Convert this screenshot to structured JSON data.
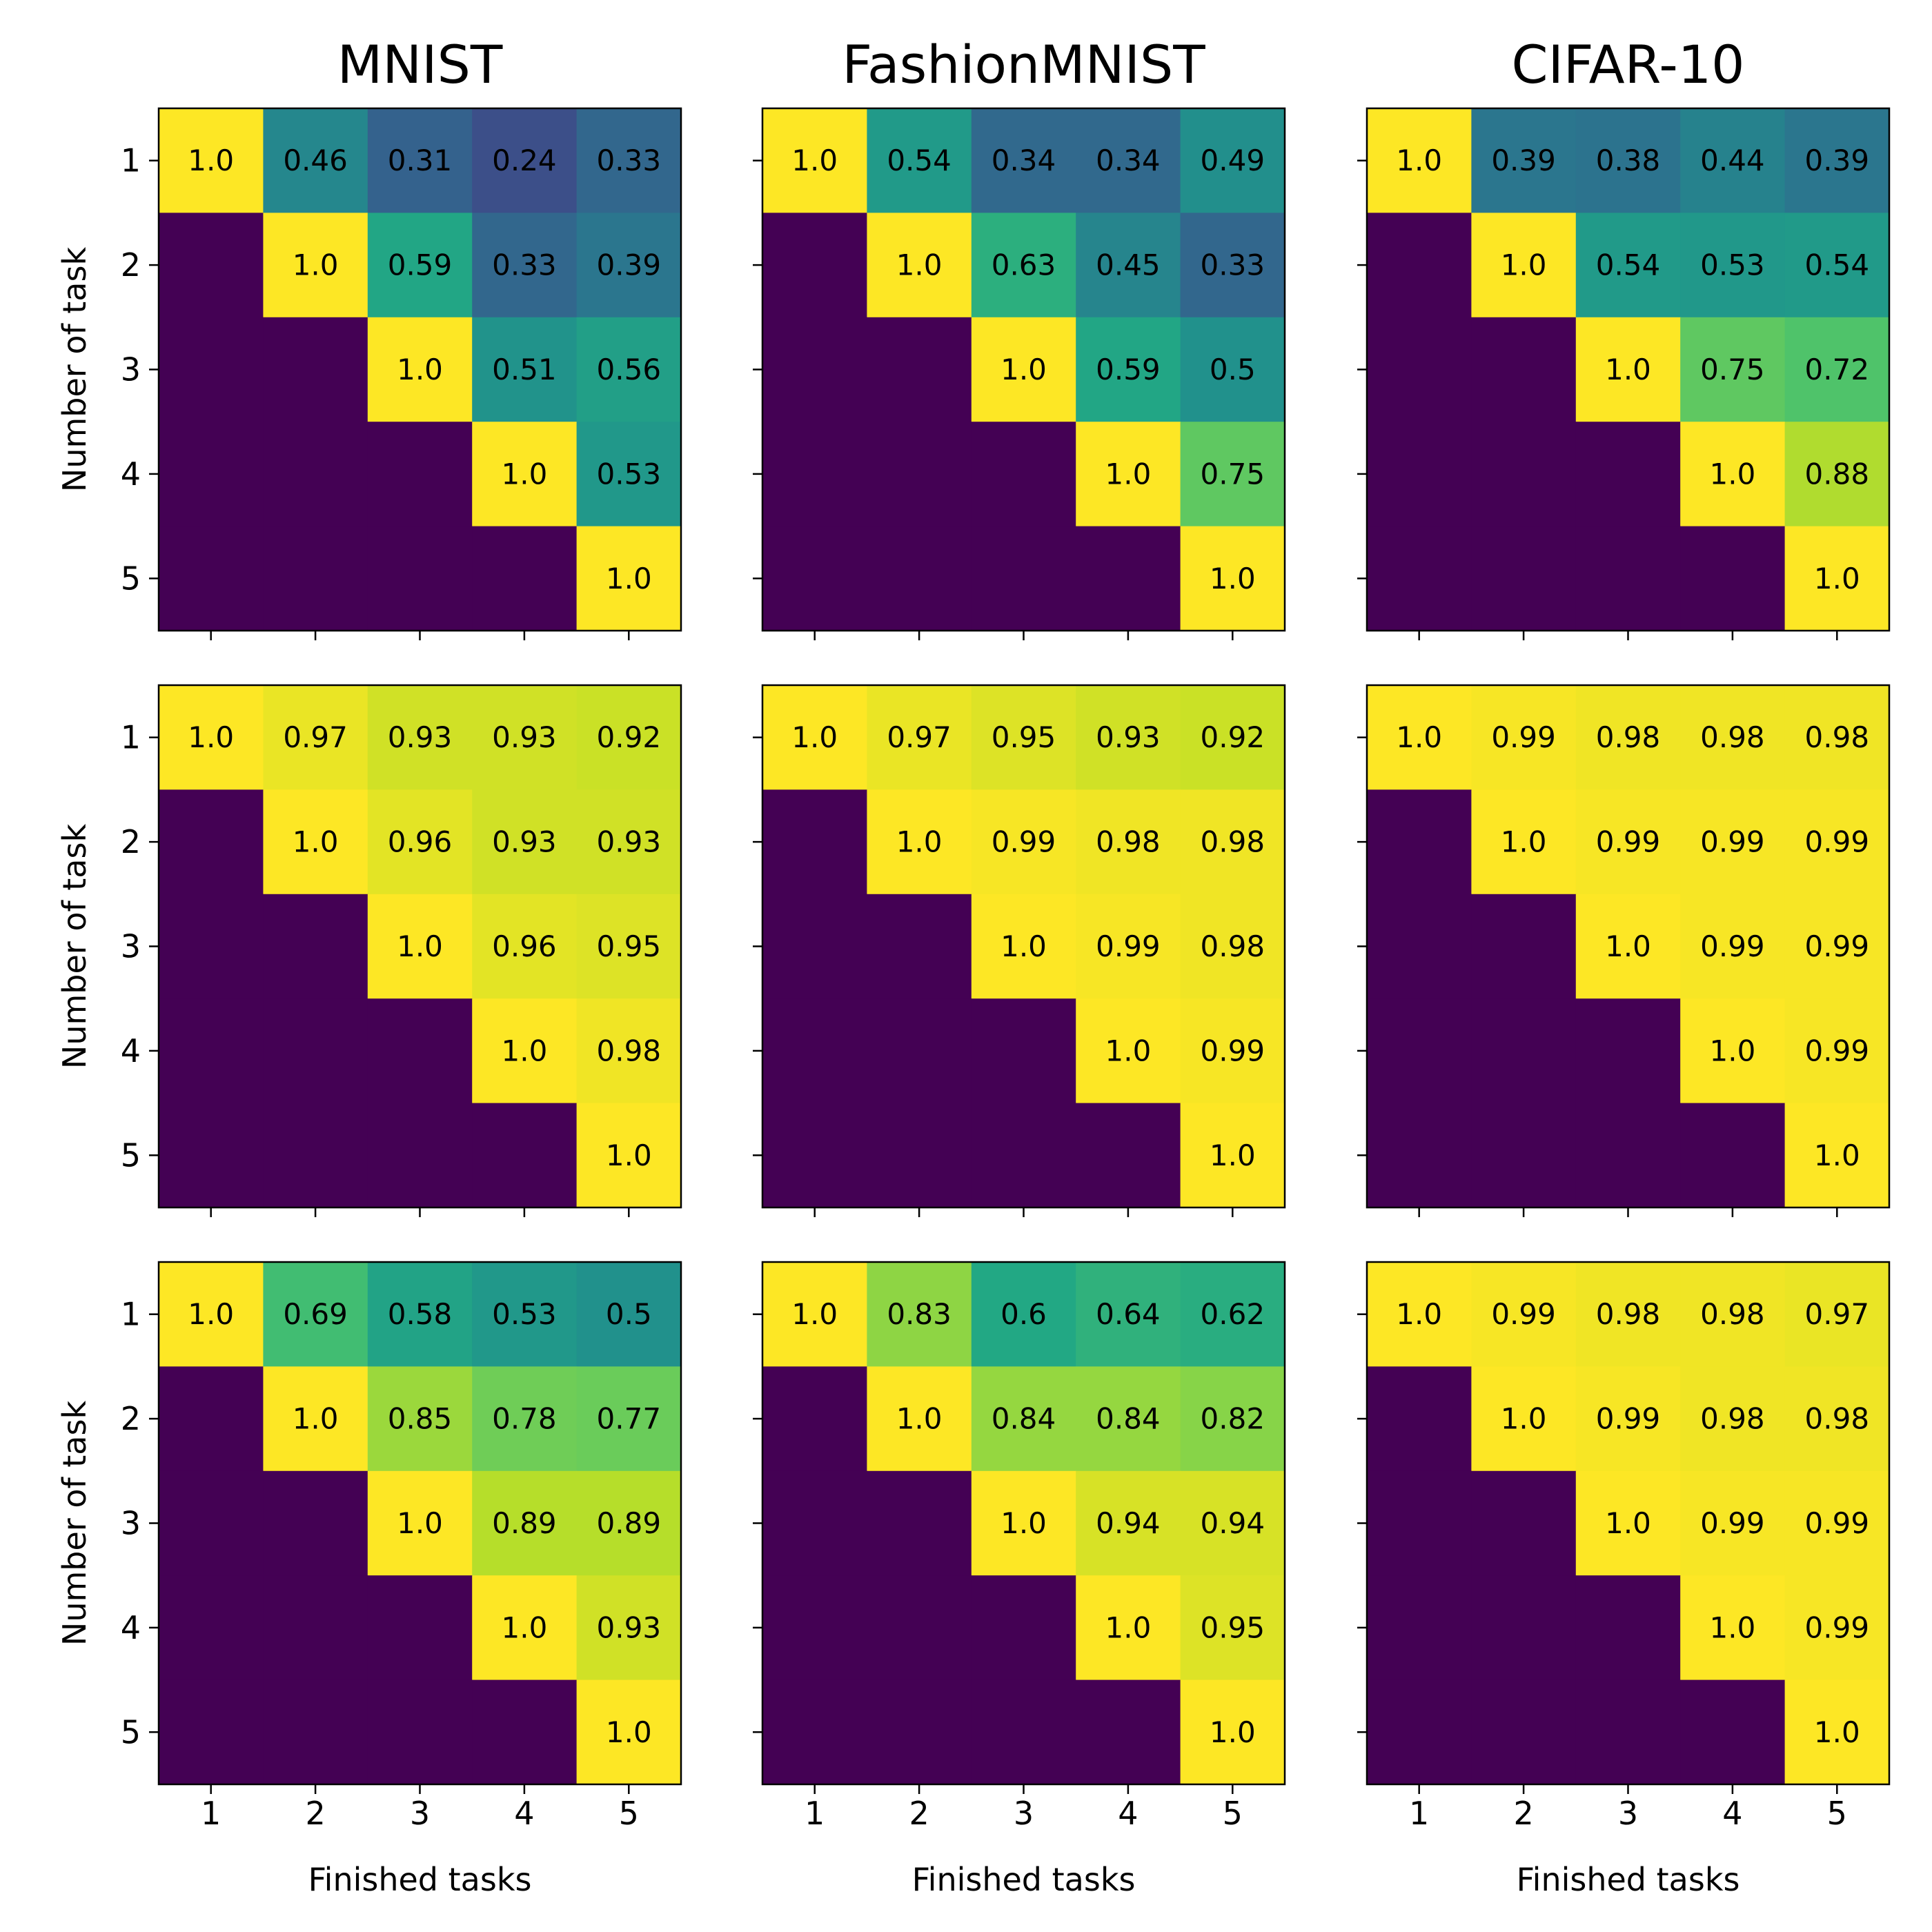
{
  "chart_data": {
    "type": "heatmap",
    "column_titles": [
      "MNIST",
      "FashionMNIST",
      "CIFAR-10"
    ],
    "xlabel": "Finished tasks",
    "ylabel": "Number of task",
    "x_ticks": [
      "1",
      "2",
      "3",
      "4",
      "5"
    ],
    "y_ticks": [
      "1",
      "2",
      "3",
      "4",
      "5"
    ],
    "colormap": "viridis",
    "color_range": [
      0,
      1
    ],
    "lower_triangle": "empty",
    "panels": [
      {
        "row": 0,
        "col": 0,
        "dataset": "MNIST",
        "matrix": [
          [
            1.0,
            0.46,
            0.31,
            0.24,
            0.33
          ],
          [
            null,
            1.0,
            0.59,
            0.33,
            0.39
          ],
          [
            null,
            null,
            1.0,
            0.51,
            0.56
          ],
          [
            null,
            null,
            null,
            1.0,
            0.53
          ],
          [
            null,
            null,
            null,
            null,
            1.0
          ]
        ],
        "labels": [
          [
            "1.0",
            "0.46",
            "0.31",
            "0.24",
            "0.33"
          ],
          [
            null,
            "1.0",
            "0.59",
            "0.33",
            "0.39"
          ],
          [
            null,
            null,
            "1.0",
            "0.51",
            "0.56"
          ],
          [
            null,
            null,
            null,
            "1.0",
            "0.53"
          ],
          [
            null,
            null,
            null,
            null,
            "1.0"
          ]
        ]
      },
      {
        "row": 0,
        "col": 1,
        "dataset": "FashionMNIST",
        "matrix": [
          [
            1.0,
            0.54,
            0.34,
            0.34,
            0.49
          ],
          [
            null,
            1.0,
            0.63,
            0.45,
            0.33
          ],
          [
            null,
            null,
            1.0,
            0.59,
            0.5
          ],
          [
            null,
            null,
            null,
            1.0,
            0.75
          ],
          [
            null,
            null,
            null,
            null,
            1.0
          ]
        ],
        "labels": [
          [
            "1.0",
            "0.54",
            "0.34",
            "0.34",
            "0.49"
          ],
          [
            null,
            "1.0",
            "0.63",
            "0.45",
            "0.33"
          ],
          [
            null,
            null,
            "1.0",
            "0.59",
            "0.5"
          ],
          [
            null,
            null,
            null,
            "1.0",
            "0.75"
          ],
          [
            null,
            null,
            null,
            null,
            "1.0"
          ]
        ]
      },
      {
        "row": 0,
        "col": 2,
        "dataset": "CIFAR-10",
        "matrix": [
          [
            1.0,
            0.39,
            0.38,
            0.44,
            0.39
          ],
          [
            null,
            1.0,
            0.54,
            0.53,
            0.54
          ],
          [
            null,
            null,
            1.0,
            0.75,
            0.72
          ],
          [
            null,
            null,
            null,
            1.0,
            0.88
          ],
          [
            null,
            null,
            null,
            null,
            1.0
          ]
        ],
        "labels": [
          [
            "1.0",
            "0.39",
            "0.38",
            "0.44",
            "0.39"
          ],
          [
            null,
            "1.0",
            "0.54",
            "0.53",
            "0.54"
          ],
          [
            null,
            null,
            "1.0",
            "0.75",
            "0.72"
          ],
          [
            null,
            null,
            null,
            "1.0",
            "0.88"
          ],
          [
            null,
            null,
            null,
            null,
            "1.0"
          ]
        ]
      },
      {
        "row": 1,
        "col": 0,
        "dataset": "MNIST",
        "matrix": [
          [
            1.0,
            0.97,
            0.93,
            0.93,
            0.92
          ],
          [
            null,
            1.0,
            0.96,
            0.93,
            0.93
          ],
          [
            null,
            null,
            1.0,
            0.96,
            0.95
          ],
          [
            null,
            null,
            null,
            1.0,
            0.98
          ],
          [
            null,
            null,
            null,
            null,
            1.0
          ]
        ],
        "labels": [
          [
            "1.0",
            "0.97",
            "0.93",
            "0.93",
            "0.92"
          ],
          [
            null,
            "1.0",
            "0.96",
            "0.93",
            "0.93"
          ],
          [
            null,
            null,
            "1.0",
            "0.96",
            "0.95"
          ],
          [
            null,
            null,
            null,
            "1.0",
            "0.98"
          ],
          [
            null,
            null,
            null,
            null,
            "1.0"
          ]
        ]
      },
      {
        "row": 1,
        "col": 1,
        "dataset": "FashionMNIST",
        "matrix": [
          [
            1.0,
            0.97,
            0.95,
            0.93,
            0.92
          ],
          [
            null,
            1.0,
            0.99,
            0.98,
            0.98
          ],
          [
            null,
            null,
            1.0,
            0.99,
            0.98
          ],
          [
            null,
            null,
            null,
            1.0,
            0.99
          ],
          [
            null,
            null,
            null,
            null,
            1.0
          ]
        ],
        "labels": [
          [
            "1.0",
            "0.97",
            "0.95",
            "0.93",
            "0.92"
          ],
          [
            null,
            "1.0",
            "0.99",
            "0.98",
            "0.98"
          ],
          [
            null,
            null,
            "1.0",
            "0.99",
            "0.98"
          ],
          [
            null,
            null,
            null,
            "1.0",
            "0.99"
          ],
          [
            null,
            null,
            null,
            null,
            "1.0"
          ]
        ]
      },
      {
        "row": 1,
        "col": 2,
        "dataset": "CIFAR-10",
        "matrix": [
          [
            1.0,
            0.99,
            0.98,
            0.98,
            0.98
          ],
          [
            null,
            1.0,
            0.99,
            0.99,
            0.99
          ],
          [
            null,
            null,
            1.0,
            0.99,
            0.99
          ],
          [
            null,
            null,
            null,
            1.0,
            0.99
          ],
          [
            null,
            null,
            null,
            null,
            1.0
          ]
        ],
        "labels": [
          [
            "1.0",
            "0.99",
            "0.98",
            "0.98",
            "0.98"
          ],
          [
            null,
            "1.0",
            "0.99",
            "0.99",
            "0.99"
          ],
          [
            null,
            null,
            "1.0",
            "0.99",
            "0.99"
          ],
          [
            null,
            null,
            null,
            "1.0",
            "0.99"
          ],
          [
            null,
            null,
            null,
            null,
            "1.0"
          ]
        ]
      },
      {
        "row": 2,
        "col": 0,
        "dataset": "MNIST",
        "matrix": [
          [
            1.0,
            0.69,
            0.58,
            0.53,
            0.5
          ],
          [
            null,
            1.0,
            0.85,
            0.78,
            0.77
          ],
          [
            null,
            null,
            1.0,
            0.89,
            0.89
          ],
          [
            null,
            null,
            null,
            1.0,
            0.93
          ],
          [
            null,
            null,
            null,
            null,
            1.0
          ]
        ],
        "labels": [
          [
            "1.0",
            "0.69",
            "0.58",
            "0.53",
            "0.5"
          ],
          [
            null,
            "1.0",
            "0.85",
            "0.78",
            "0.77"
          ],
          [
            null,
            null,
            "1.0",
            "0.89",
            "0.89"
          ],
          [
            null,
            null,
            null,
            "1.0",
            "0.93"
          ],
          [
            null,
            null,
            null,
            null,
            "1.0"
          ]
        ]
      },
      {
        "row": 2,
        "col": 1,
        "dataset": "FashionMNIST",
        "matrix": [
          [
            1.0,
            0.83,
            0.6,
            0.64,
            0.62
          ],
          [
            null,
            1.0,
            0.84,
            0.84,
            0.82
          ],
          [
            null,
            null,
            1.0,
            0.94,
            0.94
          ],
          [
            null,
            null,
            null,
            1.0,
            0.95
          ],
          [
            null,
            null,
            null,
            null,
            1.0
          ]
        ],
        "labels": [
          [
            "1.0",
            "0.83",
            "0.6",
            "0.64",
            "0.62"
          ],
          [
            null,
            "1.0",
            "0.84",
            "0.84",
            "0.82"
          ],
          [
            null,
            null,
            "1.0",
            "0.94",
            "0.94"
          ],
          [
            null,
            null,
            null,
            "1.0",
            "0.95"
          ],
          [
            null,
            null,
            null,
            null,
            "1.0"
          ]
        ]
      },
      {
        "row": 2,
        "col": 2,
        "dataset": "CIFAR-10",
        "matrix": [
          [
            1.0,
            0.99,
            0.98,
            0.98,
            0.97
          ],
          [
            null,
            1.0,
            0.99,
            0.98,
            0.98
          ],
          [
            null,
            null,
            1.0,
            0.99,
            0.99
          ],
          [
            null,
            null,
            null,
            1.0,
            0.99
          ],
          [
            null,
            null,
            null,
            null,
            1.0
          ]
        ],
        "labels": [
          [
            "1.0",
            "0.99",
            "0.98",
            "0.98",
            "0.97"
          ],
          [
            null,
            "1.0",
            "0.99",
            "0.98",
            "0.98"
          ],
          [
            null,
            null,
            "1.0",
            "0.99",
            "0.99"
          ],
          [
            null,
            null,
            null,
            "1.0",
            "0.99"
          ],
          [
            null,
            null,
            null,
            null,
            "1.0"
          ]
        ]
      }
    ]
  }
}
